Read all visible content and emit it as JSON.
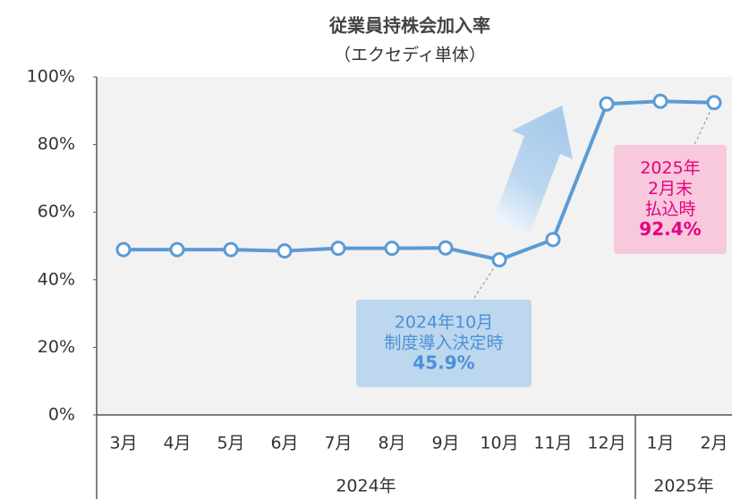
{
  "chart_data": {
    "type": "line",
    "title": "従業員持株会加入率",
    "subtitle": "（エクセディ単体）",
    "categories": [
      "3月",
      "4月",
      "5月",
      "6月",
      "7月",
      "8月",
      "9月",
      "10月",
      "11月",
      "12月",
      "1月",
      "2月"
    ],
    "year_groups": [
      "2024年",
      "2025年"
    ],
    "series": [
      {
        "name": "加入率",
        "color": "#5b9bd5",
        "values": [
          48.9,
          48.9,
          48.9,
          48.5,
          49.3,
          49.3,
          49.4,
          45.9,
          51.9,
          92.0,
          92.8,
          92.4
        ]
      }
    ],
    "ylim": [
      0,
      100
    ],
    "yticks": [
      {
        "value": 0,
        "label": "0%"
      },
      {
        "value": 20,
        "label": "20%"
      },
      {
        "value": 40,
        "label": "40%"
      },
      {
        "value": 60,
        "label": "60%"
      },
      {
        "value": 80,
        "label": "80%"
      },
      {
        "value": 100,
        "label": "100%"
      }
    ],
    "annotations": [
      {
        "lines": [
          "2024年10月",
          "制度導入決定時"
        ],
        "highlight": "45.9%",
        "color": "#4a90d9"
      },
      {
        "lines": [
          "2025年",
          "2月末",
          "払込時"
        ],
        "highlight": "92.4%",
        "color": "#e6007e"
      }
    ]
  }
}
